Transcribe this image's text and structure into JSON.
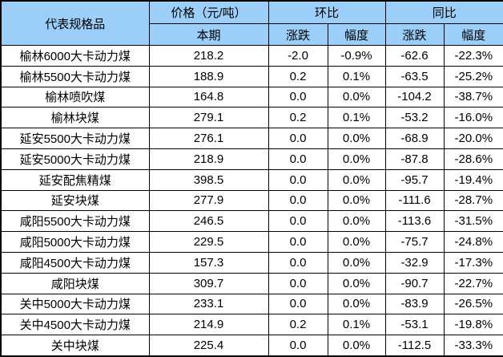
{
  "table": {
    "headers": {
      "spec": "代表规格品",
      "price_group": "价格（元/吨）",
      "current": "本期",
      "mom_group": "环比",
      "yoy_group": "同比",
      "change": "涨跌",
      "pct": "幅度"
    },
    "colors": {
      "header_bg": "#9CCEFA",
      "border": "#000000",
      "text": "#000000",
      "row_bg": "#FFFFFF"
    },
    "rows": [
      {
        "name": "榆林6000大卡动力煤",
        "price": "218.2",
        "mom_change": "-2.0",
        "mom_pct": "-0.9%",
        "yoy_change": "-62.6",
        "yoy_pct": "-22.3%"
      },
      {
        "name": "榆林5500大卡动力煤",
        "price": "188.9",
        "mom_change": "0.2",
        "mom_pct": "0.1%",
        "yoy_change": "-63.5",
        "yoy_pct": "-25.2%"
      },
      {
        "name": "榆林喷吹煤",
        "price": "164.8",
        "mom_change": "0.0",
        "mom_pct": "0.0%",
        "yoy_change": "-104.2",
        "yoy_pct": "-38.7%"
      },
      {
        "name": "榆林块煤",
        "price": "279.1",
        "mom_change": "0.2",
        "mom_pct": "0.1%",
        "yoy_change": "-53.2",
        "yoy_pct": "-16.0%"
      },
      {
        "name": "延安5500大卡动力煤",
        "price": "276.1",
        "mom_change": "0.0",
        "mom_pct": "0.0%",
        "yoy_change": "-68.9",
        "yoy_pct": "-20.0%"
      },
      {
        "name": "延安5000大卡动力煤",
        "price": "218.9",
        "mom_change": "0.0",
        "mom_pct": "0.0%",
        "yoy_change": "-87.8",
        "yoy_pct": "-28.6%"
      },
      {
        "name": "延安配焦精煤",
        "price": "398.5",
        "mom_change": "0.0",
        "mom_pct": "0.0%",
        "yoy_change": "-95.7",
        "yoy_pct": "-19.4%"
      },
      {
        "name": "延安块煤",
        "price": "277.9",
        "mom_change": "0.0",
        "mom_pct": "0.0%",
        "yoy_change": "-111.6",
        "yoy_pct": "-28.7%"
      },
      {
        "name": "咸阳5500大卡动力煤",
        "price": "246.5",
        "mom_change": "0.0",
        "mom_pct": "0.0%",
        "yoy_change": "-113.6",
        "yoy_pct": "-31.5%"
      },
      {
        "name": "咸阳5000大卡动力煤",
        "price": "229.5",
        "mom_change": "0.0",
        "mom_pct": "0.0%",
        "yoy_change": "-75.7",
        "yoy_pct": "-24.8%"
      },
      {
        "name": "咸阳4500大卡动力煤",
        "price": "157.3",
        "mom_change": "0.0",
        "mom_pct": "0.0%",
        "yoy_change": "-32.9",
        "yoy_pct": "-17.3%"
      },
      {
        "name": "咸阳块煤",
        "price": "309.7",
        "mom_change": "0.0",
        "mom_pct": "0.0%",
        "yoy_change": "-90.7",
        "yoy_pct": "-22.7%"
      },
      {
        "name": "关中5000大卡动力煤",
        "price": "233.1",
        "mom_change": "0.0",
        "mom_pct": "0.0%",
        "yoy_change": "-83.9",
        "yoy_pct": "-26.5%"
      },
      {
        "name": "关中4500大卡动力煤",
        "price": "214.9",
        "mom_change": "0.2",
        "mom_pct": "0.1%",
        "yoy_change": "-53.1",
        "yoy_pct": "-19.8%"
      },
      {
        "name": "关中块煤",
        "price": "225.4",
        "mom_change": "0.0",
        "mom_pct": "0.0%",
        "yoy_change": "-112.5",
        "yoy_pct": "-33.3%"
      }
    ]
  }
}
